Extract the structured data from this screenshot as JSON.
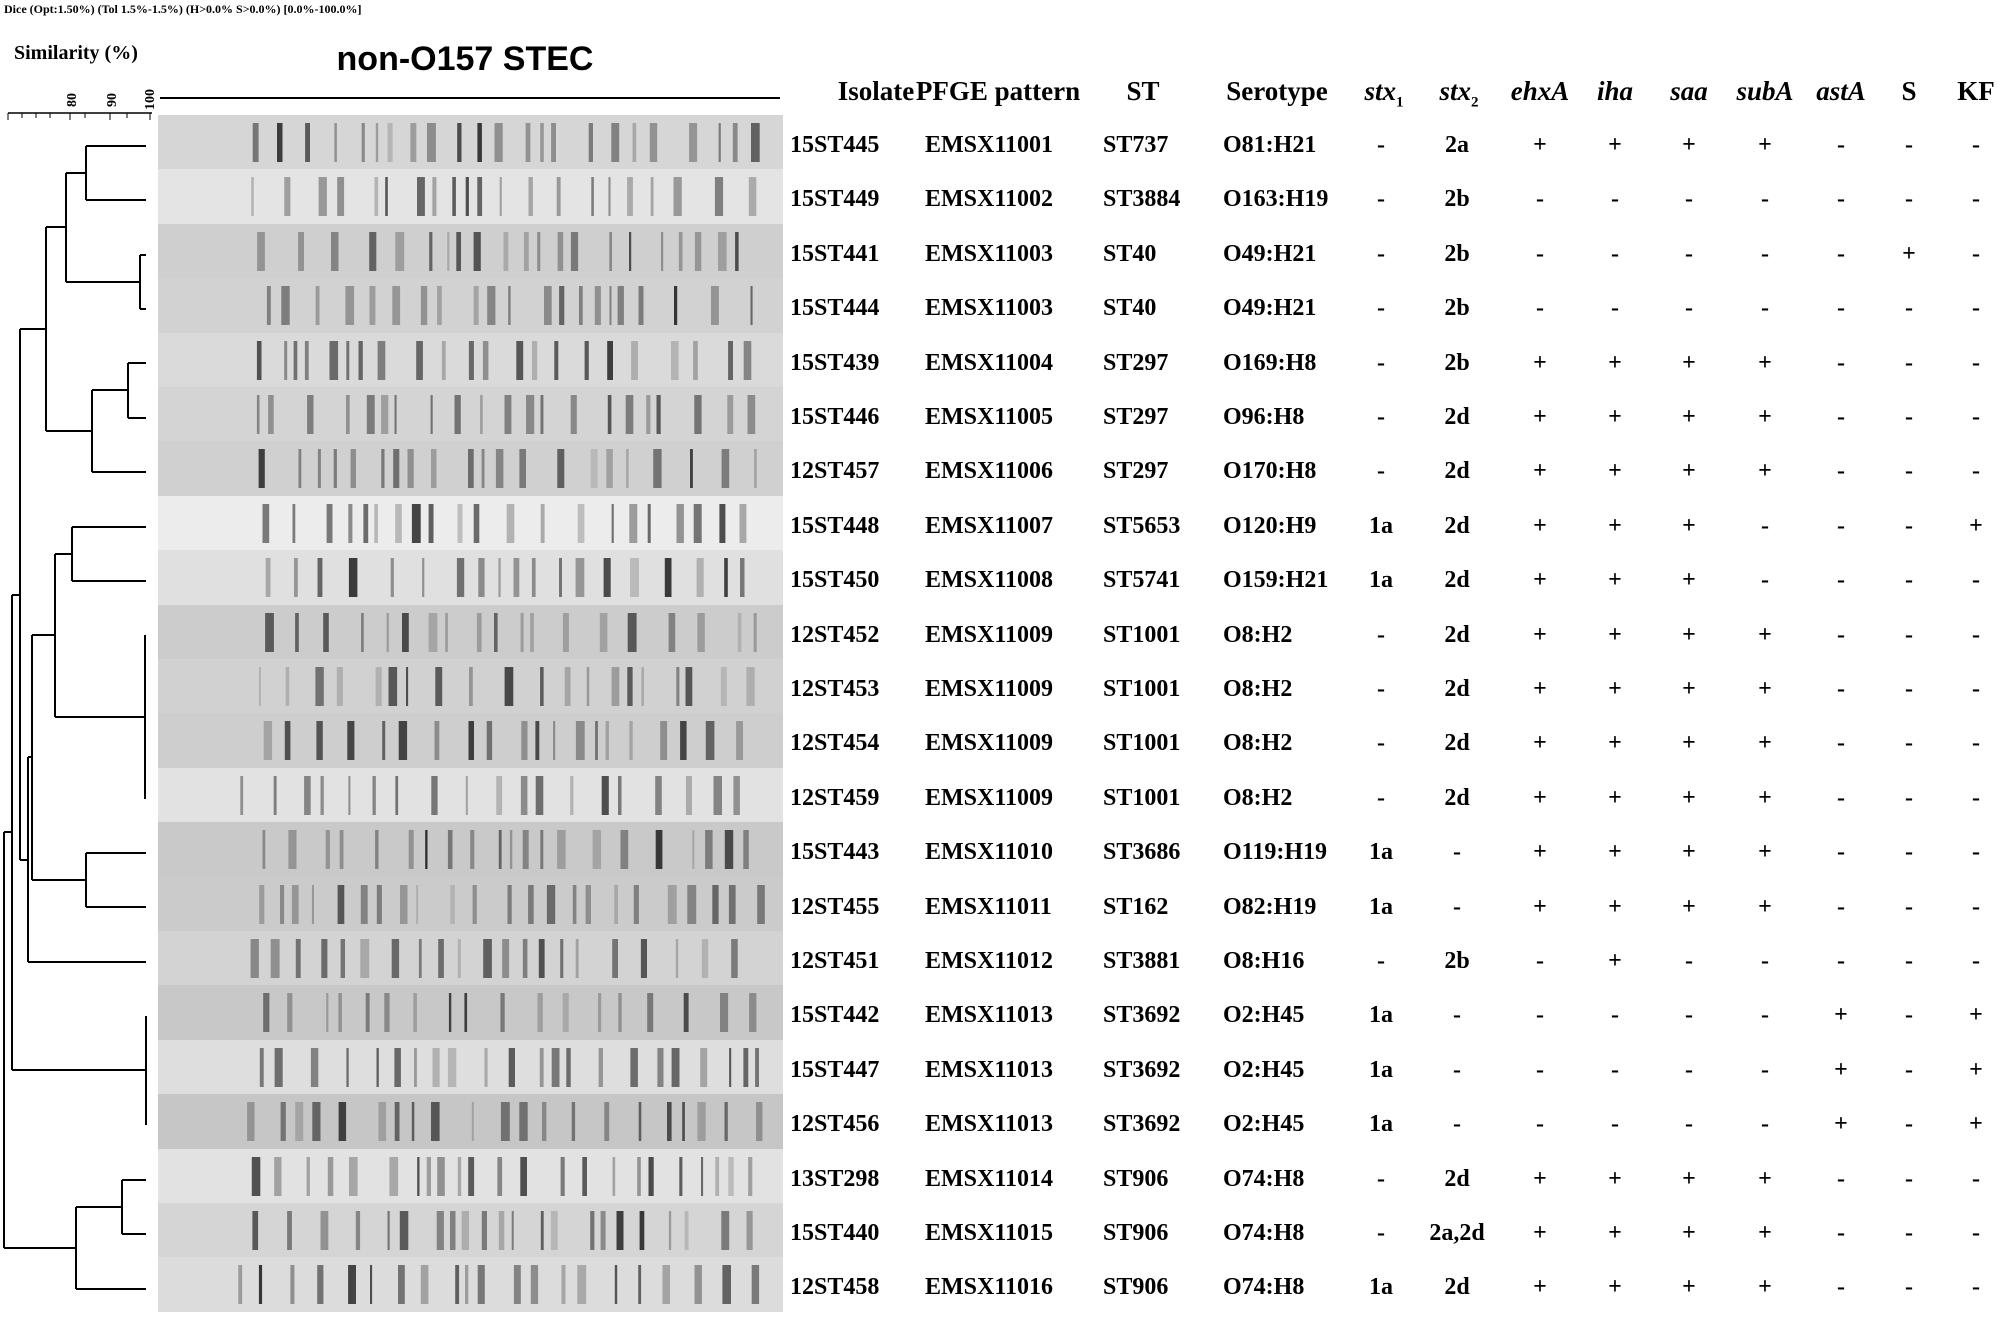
{
  "header_text": "Dice (Opt:1.50%) (Tol 1.5%-1.5%) (H>0.0% S>0.0%) [0.0%-100.0%]",
  "similarity_label": "Similarity (%)",
  "scale_ticks": [
    "80",
    "90",
    "100"
  ],
  "gel_title": "non-O157 STEC",
  "columns": {
    "isolate": "Isolate",
    "pfge": "PFGE pattern",
    "st": "ST",
    "serotype": "Serotype",
    "stx1_base": "stx",
    "stx1_sub": "1",
    "stx2_base": "stx",
    "stx2_sub": "2",
    "ehxA": "ehxA",
    "iha": "iha",
    "saa": "saa",
    "subA": "subA",
    "astA": "astA",
    "S": "S",
    "KF": "KF"
  },
  "rows": [
    {
      "isolate": "15ST445",
      "pfge": "EMSX11001",
      "st": "ST737",
      "serotype": "O81:H21",
      "stx1": "-",
      "stx2": "2a",
      "ehxA": "+",
      "iha": "+",
      "saa": "+",
      "subA": "+",
      "astA": "-",
      "S": "-",
      "KF": "-"
    },
    {
      "isolate": "15ST449",
      "pfge": "EMSX11002",
      "st": "ST3884",
      "serotype": "O163:H19",
      "stx1": "-",
      "stx2": "2b",
      "ehxA": "-",
      "iha": "-",
      "saa": "-",
      "subA": "-",
      "astA": "-",
      "S": "-",
      "KF": "-"
    },
    {
      "isolate": "15ST441",
      "pfge": "EMSX11003",
      "st": "ST40",
      "serotype": "O49:H21",
      "stx1": "-",
      "stx2": "2b",
      "ehxA": "-",
      "iha": "-",
      "saa": "-",
      "subA": "-",
      "astA": "-",
      "S": "+",
      "KF": "-"
    },
    {
      "isolate": "15ST444",
      "pfge": "EMSX11003",
      "st": "ST40",
      "serotype": "O49:H21",
      "stx1": "-",
      "stx2": "2b",
      "ehxA": "-",
      "iha": "-",
      "saa": "-",
      "subA": "-",
      "astA": "-",
      "S": "-",
      "KF": "-"
    },
    {
      "isolate": "15ST439",
      "pfge": "EMSX11004",
      "st": "ST297",
      "serotype": "O169:H8",
      "stx1": "-",
      "stx2": "2b",
      "ehxA": "+",
      "iha": "+",
      "saa": "+",
      "subA": "+",
      "astA": "-",
      "S": "-",
      "KF": "-"
    },
    {
      "isolate": "15ST446",
      "pfge": "EMSX11005",
      "st": "ST297",
      "serotype": "O96:H8",
      "stx1": "-",
      "stx2": "2d",
      "ehxA": "+",
      "iha": "+",
      "saa": "+",
      "subA": "+",
      "astA": "-",
      "S": "-",
      "KF": "-"
    },
    {
      "isolate": "12ST457",
      "pfge": "EMSX11006",
      "st": "ST297",
      "serotype": "O170:H8",
      "stx1": "-",
      "stx2": "2d",
      "ehxA": "+",
      "iha": "+",
      "saa": "+",
      "subA": "+",
      "astA": "-",
      "S": "-",
      "KF": "-"
    },
    {
      "isolate": "15ST448",
      "pfge": "EMSX11007",
      "st": "ST5653",
      "serotype": "O120:H9",
      "stx1": "1a",
      "stx2": "2d",
      "ehxA": "+",
      "iha": "+",
      "saa": "+",
      "subA": "-",
      "astA": "-",
      "S": "-",
      "KF": "+"
    },
    {
      "isolate": "15ST450",
      "pfge": "EMSX11008",
      "st": "ST5741",
      "serotype": "O159:H21",
      "stx1": "1a",
      "stx2": "2d",
      "ehxA": "+",
      "iha": "+",
      "saa": "+",
      "subA": "-",
      "astA": "-",
      "S": "-",
      "KF": "-"
    },
    {
      "isolate": "12ST452",
      "pfge": "EMSX11009",
      "st": "ST1001",
      "serotype": "O8:H2",
      "stx1": "-",
      "stx2": "2d",
      "ehxA": "+",
      "iha": "+",
      "saa": "+",
      "subA": "+",
      "astA": "-",
      "S": "-",
      "KF": "-"
    },
    {
      "isolate": "12ST453",
      "pfge": "EMSX11009",
      "st": "ST1001",
      "serotype": "O8:H2",
      "stx1": "-",
      "stx2": "2d",
      "ehxA": "+",
      "iha": "+",
      "saa": "+",
      "subA": "+",
      "astA": "-",
      "S": "-",
      "KF": "-"
    },
    {
      "isolate": "12ST454",
      "pfge": "EMSX11009",
      "st": "ST1001",
      "serotype": "O8:H2",
      "stx1": "-",
      "stx2": "2d",
      "ehxA": "+",
      "iha": "+",
      "saa": "+",
      "subA": "+",
      "astA": "-",
      "S": "-",
      "KF": "-"
    },
    {
      "isolate": "12ST459",
      "pfge": "EMSX11009",
      "st": "ST1001",
      "serotype": "O8:H2",
      "stx1": "-",
      "stx2": "2d",
      "ehxA": "+",
      "iha": "+",
      "saa": "+",
      "subA": "+",
      "astA": "-",
      "S": "-",
      "KF": "-"
    },
    {
      "isolate": "15ST443",
      "pfge": "EMSX11010",
      "st": "ST3686",
      "serotype": "O119:H19",
      "stx1": "1a",
      "stx2": "-",
      "ehxA": "+",
      "iha": "+",
      "saa": "+",
      "subA": "+",
      "astA": "-",
      "S": "-",
      "KF": "-"
    },
    {
      "isolate": "12ST455",
      "pfge": "EMSX11011",
      "st": "ST162",
      "serotype": "O82:H19",
      "stx1": "1a",
      "stx2": "-",
      "ehxA": "+",
      "iha": "+",
      "saa": "+",
      "subA": "+",
      "astA": "-",
      "S": "-",
      "KF": "-"
    },
    {
      "isolate": "12ST451",
      "pfge": "EMSX11012",
      "st": "ST3881",
      "serotype": "O8:H16",
      "stx1": "-",
      "stx2": "2b",
      "ehxA": "-",
      "iha": "+",
      "saa": "-",
      "subA": "-",
      "astA": "-",
      "S": "-",
      "KF": "-"
    },
    {
      "isolate": "15ST442",
      "pfge": "EMSX11013",
      "st": "ST3692",
      "serotype": "O2:H45",
      "stx1": "1a",
      "stx2": "-",
      "ehxA": "-",
      "iha": "-",
      "saa": "-",
      "subA": "-",
      "astA": "+",
      "S": "-",
      "KF": "+"
    },
    {
      "isolate": "15ST447",
      "pfge": "EMSX11013",
      "st": "ST3692",
      "serotype": "O2:H45",
      "stx1": "1a",
      "stx2": "-",
      "ehxA": "-",
      "iha": "-",
      "saa": "-",
      "subA": "-",
      "astA": "+",
      "S": "-",
      "KF": "+"
    },
    {
      "isolate": "12ST456",
      "pfge": "EMSX11013",
      "st": "ST3692",
      "serotype": "O2:H45",
      "stx1": "1a",
      "stx2": "-",
      "ehxA": "-",
      "iha": "-",
      "saa": "-",
      "subA": "-",
      "astA": "+",
      "S": "-",
      "KF": "+"
    },
    {
      "isolate": "13ST298",
      "pfge": "EMSX11014",
      "st": "ST906",
      "serotype": "O74:H8",
      "stx1": "-",
      "stx2": "2d",
      "ehxA": "+",
      "iha": "+",
      "saa": "+",
      "subA": "+",
      "astA": "-",
      "S": "-",
      "KF": "-"
    },
    {
      "isolate": "15ST440",
      "pfge": "EMSX11015",
      "st": "ST906",
      "serotype": "O74:H8",
      "stx1": "-",
      "stx2": "2a,2d",
      "ehxA": "+",
      "iha": "+",
      "saa": "+",
      "subA": "+",
      "astA": "-",
      "S": "-",
      "KF": "-"
    },
    {
      "isolate": "12ST458",
      "pfge": "EMSX11016",
      "st": "ST906",
      "serotype": "O74:H8",
      "stx1": "1a",
      "stx2": "2d",
      "ehxA": "+",
      "iha": "+",
      "saa": "+",
      "subA": "+",
      "astA": "-",
      "S": "-",
      "KF": "-"
    }
  ]
}
